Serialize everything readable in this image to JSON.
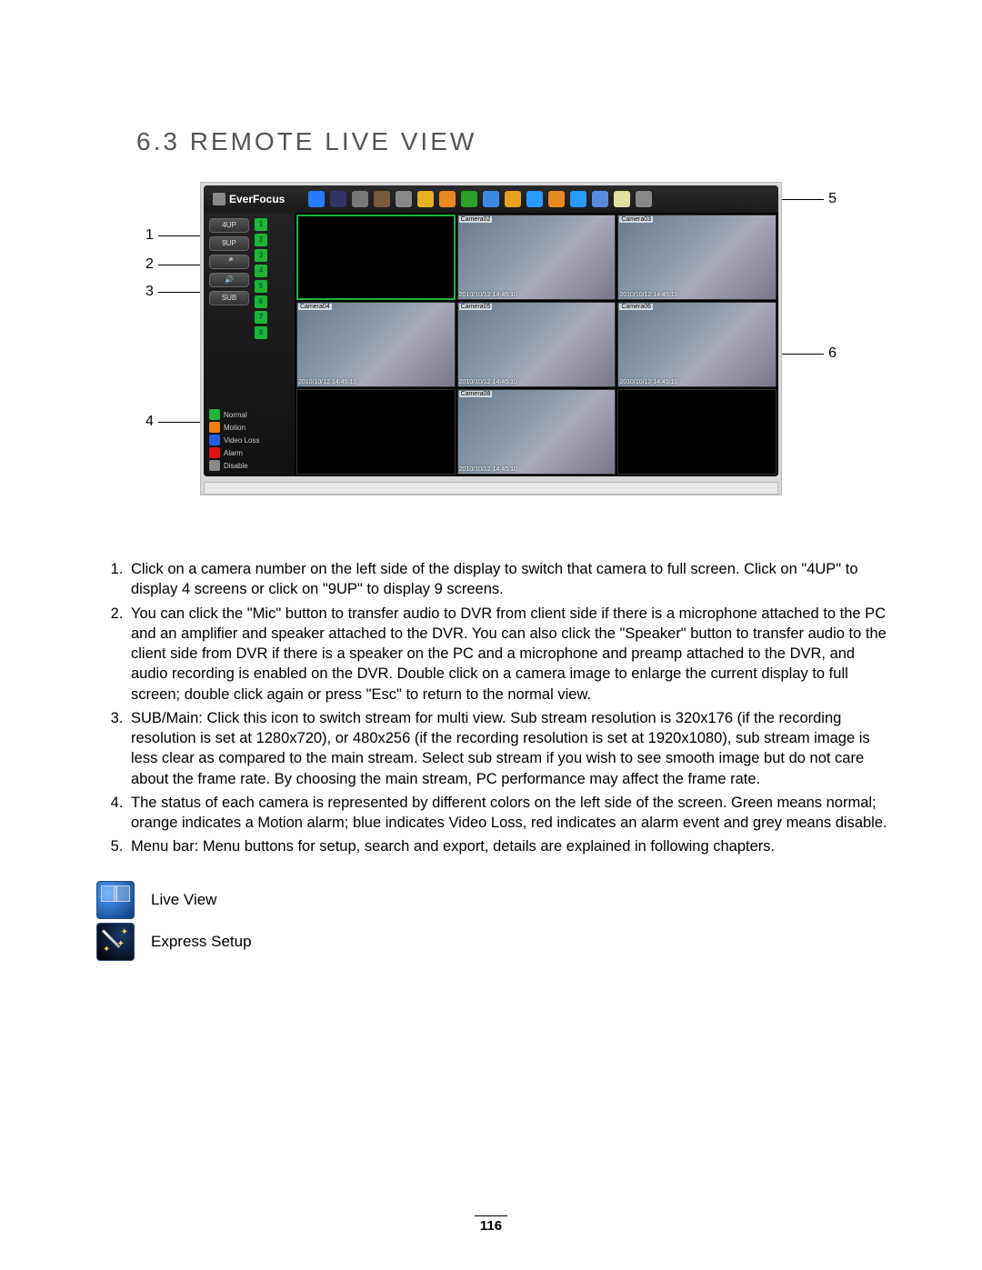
{
  "heading": "6.3 REMOTE LIVE VIEW",
  "pageNumber": "116",
  "screenshot": {
    "brand": "EverFocus",
    "toolbarIcons": [
      {
        "name": "live-view-icon",
        "color": "#2a7aff"
      },
      {
        "name": "express-icon",
        "color": "#333366"
      },
      {
        "name": "wrench-icon",
        "color": "#777"
      },
      {
        "name": "eye-icon",
        "color": "#7a5a3a"
      },
      {
        "name": "film-icon",
        "color": "#888"
      },
      {
        "name": "bell-icon",
        "color": "#e8b020"
      },
      {
        "name": "clock-icon",
        "color": "#e88820"
      },
      {
        "name": "green-icon",
        "color": "#2aa02a"
      },
      {
        "name": "network-icon",
        "color": "#3a8ae0"
      },
      {
        "name": "folder-icon",
        "color": "#e8a020"
      },
      {
        "name": "monitor-icon",
        "color": "#2a9aff"
      },
      {
        "name": "gear-icon",
        "color": "#e88820"
      },
      {
        "name": "info-icon",
        "color": "#2a9aff"
      },
      {
        "name": "copy-icon",
        "color": "#5a8ae0"
      },
      {
        "name": "page-icon",
        "color": "#e0e0a0"
      },
      {
        "name": "device-icon",
        "color": "#888"
      }
    ],
    "sideButtons": [
      {
        "name": "btn-4up",
        "label": "4UP"
      },
      {
        "name": "btn-9up",
        "label": "9UP"
      },
      {
        "name": "btn-mic",
        "label": "🎤"
      },
      {
        "name": "btn-speaker",
        "label": "🔊"
      },
      {
        "name": "btn-sub",
        "label": "SUB"
      }
    ],
    "camNumbers": [
      "1",
      "2",
      "3",
      "4",
      "5",
      "6",
      "7",
      "8"
    ],
    "legend": [
      {
        "color": "#1db43a",
        "label": "Normal"
      },
      {
        "color": "#f08010",
        "label": "Motion"
      },
      {
        "color": "#2060e0",
        "label": "Video Loss"
      },
      {
        "color": "#e01010",
        "label": "Alarm"
      },
      {
        "color": "#888888",
        "label": "Disable"
      }
    ],
    "cells": [
      {
        "selected": true,
        "feed": false,
        "label": "",
        "ts": ""
      },
      {
        "feed": true,
        "label": "Camera02",
        "ts": "2010/10/12 14:45:10"
      },
      {
        "feed": true,
        "label": "Camera03",
        "ts": "2010/10/12 14:45:10"
      },
      {
        "feed": true,
        "label": "Camera04",
        "ts": "2010/10/12 14:45:10"
      },
      {
        "feed": true,
        "label": "Camera05",
        "ts": "2010/10/12 14:45:10"
      },
      {
        "feed": true,
        "label": "Camera06",
        "ts": "2010/10/12 14:45:10"
      },
      {
        "feed": false,
        "label": "",
        "ts": ""
      },
      {
        "feed": true,
        "label": "Camera08",
        "ts": "2010/10/12 14:45:10"
      },
      {
        "feed": false,
        "label": "",
        "ts": ""
      }
    ]
  },
  "callouts": {
    "c1": "1",
    "c2": "2",
    "c3": "3",
    "c4": "4",
    "c5": "5",
    "c6": "6"
  },
  "instructions": [
    "Click on a camera number on the left side of the display to switch that camera to full screen. Click on \"4UP\" to display 4 screens or click on \"9UP\" to display 9 screens.",
    "You can click the \"Mic\" button to transfer audio to DVR from client side if there is a microphone attached to the PC and an amplifier and speaker attached to the DVR. You can also click the \"Speaker\" button to transfer audio to the client side from DVR if there is a speaker on the PC and a microphone and preamp attached to the DVR, and audio recording is enabled on the DVR. Double click on a camera image to enlarge the current display to full screen; double click again or press \"Esc\" to return to the normal view.",
    "SUB/Main: Click this icon to switch stream for multi view. Sub stream resolution is 320x176 (if the recording resolution is set at 1280x720), or 480x256  (if the recording resolution is set at 1920x1080), sub stream image is less clear as compared to the main stream.  Select sub stream if you wish to see smooth image but do not care about the frame rate. By choosing the main stream, PC performance may affect the frame rate.",
    "The status of each camera is represented by different colors on the left side of the screen. Green means normal; orange indicates a Motion alarm; blue indicates Video Loss, red indicates an alarm event and grey means disable.",
    "Menu bar: Menu buttons for setup, search and export, details are explained in following chapters."
  ],
  "iconList": [
    {
      "name": "live-view",
      "label": "Live View"
    },
    {
      "name": "express-setup",
      "label": "Express Setup"
    }
  ]
}
